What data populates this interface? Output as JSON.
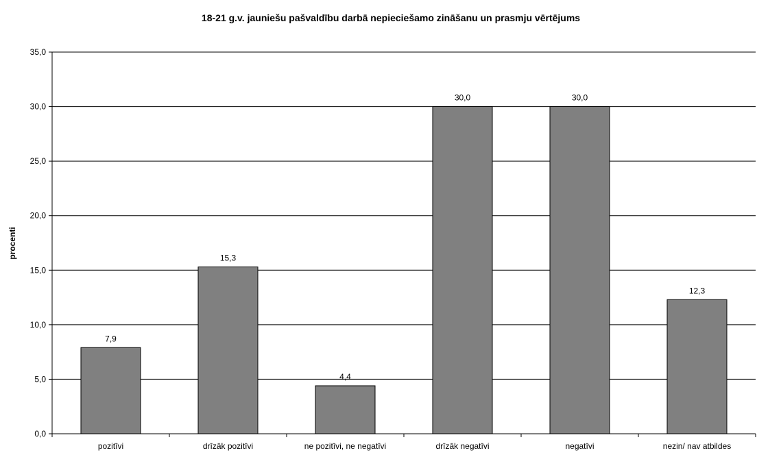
{
  "chart_data": {
    "type": "bar",
    "title": "18-21 g.v. jauniešu pašvaldību darbā nepieciešamo zināšanu un prasmju vērtējums",
    "xlabel": "",
    "ylabel": "procenti",
    "categories": [
      "pozitīvi",
      "drīzāk pozitīvi",
      "ne pozitīvi, ne negatīvi",
      "drīzāk negatīvi",
      "negatīvi",
      "nezin/ nav atbildes"
    ],
    "values": [
      7.9,
      15.3,
      4.4,
      30.0,
      30.0,
      12.3
    ],
    "value_labels": [
      "7,9",
      "15,3",
      "4,4",
      "30,0",
      "30,0",
      "12,3"
    ],
    "ylim": [
      0,
      35
    ],
    "y_ticks": [
      0,
      5,
      10,
      15,
      20,
      25,
      30,
      35
    ],
    "y_tick_labels": [
      "0,0",
      "5,0",
      "10,0",
      "15,0",
      "20,0",
      "25,0",
      "30,0",
      "35,0"
    ],
    "grid": true,
    "legend": "none",
    "bar_color": "#808080",
    "bar_stroke": "#000000"
  }
}
